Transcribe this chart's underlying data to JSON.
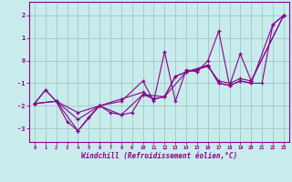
{
  "xlabel": "Windchill (Refroidissement éolien,°C)",
  "bg_color": "#c8ecec",
  "line_color": "#8b008b",
  "grid_color": "#a0c8c8",
  "xlim": [
    -0.5,
    23.5
  ],
  "ylim": [
    -3.6,
    2.6
  ],
  "yticks": [
    -3,
    -2,
    -1,
    0,
    1,
    2
  ],
  "xticks": [
    0,
    1,
    2,
    3,
    4,
    5,
    6,
    7,
    8,
    9,
    10,
    11,
    12,
    13,
    14,
    15,
    16,
    17,
    18,
    19,
    20,
    21,
    22,
    23
  ],
  "line1_x": [
    0,
    1,
    2,
    3,
    4,
    5,
    6,
    7,
    8,
    9,
    10,
    11,
    12,
    13,
    14,
    15,
    16,
    17,
    18,
    19,
    20,
    21,
    22,
    23
  ],
  "line1_y": [
    -1.9,
    -1.3,
    -1.8,
    -2.7,
    -3.1,
    -2.5,
    -2.0,
    -2.3,
    -2.4,
    -2.3,
    -1.5,
    -1.7,
    -1.6,
    -0.7,
    -0.5,
    -0.4,
    -0.2,
    -1.0,
    -1.1,
    -0.9,
    -1.0,
    -1.0,
    1.6,
    2.0
  ],
  "line2_x": [
    0,
    2,
    4,
    6,
    8,
    10,
    11,
    12,
    13,
    14,
    15,
    16,
    17,
    18,
    19,
    20,
    23
  ],
  "line2_y": [
    -1.9,
    -1.8,
    -2.6,
    -2.0,
    -1.8,
    -0.9,
    -1.8,
    0.4,
    -1.8,
    -0.4,
    -0.5,
    0.0,
    1.3,
    -1.1,
    0.3,
    -0.9,
    2.0
  ],
  "line3_x": [
    0,
    2,
    4,
    6,
    8,
    10,
    11,
    12,
    13,
    14,
    15,
    16,
    17,
    18,
    19,
    20,
    23
  ],
  "line3_y": [
    -1.9,
    -1.8,
    -2.3,
    -2.0,
    -1.7,
    -1.4,
    -1.7,
    -1.6,
    -0.7,
    -0.5,
    -0.4,
    -0.25,
    -0.9,
    -1.0,
    -0.8,
    -0.9,
    2.0
  ],
  "line4_x": [
    0,
    1,
    2,
    4,
    6,
    8,
    10,
    12,
    14,
    16,
    17,
    18,
    19,
    20,
    22,
    23
  ],
  "line4_y": [
    -1.9,
    -1.3,
    -1.8,
    -3.1,
    -2.0,
    -2.4,
    -1.5,
    -1.6,
    -0.5,
    -0.2,
    -1.0,
    -1.1,
    -0.9,
    -1.0,
    1.6,
    2.0
  ]
}
